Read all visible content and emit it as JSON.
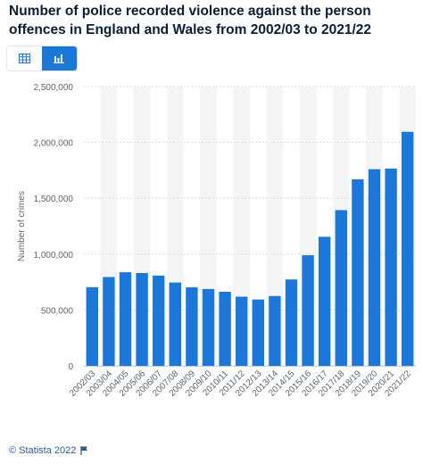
{
  "page": {
    "title": "Number of police recorded violence against the person offences in England and Wales from 2002/03 to 2021/22",
    "footer": "© Statista 2022",
    "accent_color": "#1c78d8"
  },
  "toolbar": {
    "table_view_icon": "table-icon",
    "chart_view_icon": "bar-chart-icon"
  },
  "chart_data": {
    "type": "bar",
    "title": "",
    "xlabel": "",
    "ylabel": "Number of crimes",
    "ylim": [
      0,
      2500000
    ],
    "yticks": [
      0,
      500000,
      1000000,
      1500000,
      2000000,
      2500000
    ],
    "ytick_labels": [
      "0",
      "500,000",
      "1,000,000",
      "1,500,000",
      "2,000,000",
      "2,500,000"
    ],
    "grid": true,
    "bar_color": "#1c78d8",
    "categories": [
      "2002/03",
      "2003/04",
      "2004/05",
      "2005/06",
      "2006/07",
      "2007/08",
      "2008/09",
      "2009/10",
      "2010/11",
      "2011/12",
      "2012/13",
      "2013/14",
      "2014/15",
      "2015/16",
      "2016/17",
      "2017/18",
      "2018/19",
      "2019/20",
      "2020/21",
      "2021/22"
    ],
    "values": [
      704000,
      795000,
      838000,
      831000,
      808000,
      746000,
      703000,
      688000,
      663000,
      619000,
      594000,
      625000,
      773000,
      990000,
      1155000,
      1394000,
      1670000,
      1760000,
      1766000,
      2095000
    ]
  }
}
